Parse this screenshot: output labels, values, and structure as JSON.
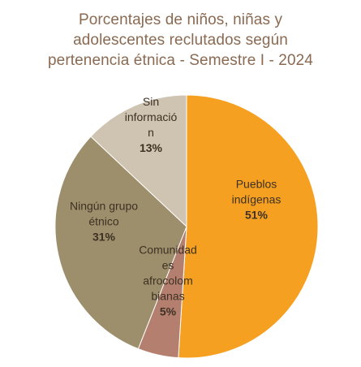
{
  "chart_data": {
    "type": "pie",
    "title_lines": [
      "Porcentajes de niños, niñas y",
      "adolescentes reclutados según",
      "pertenencia étnica  - Semestre I - 2024"
    ],
    "slices": [
      {
        "label_lines": [
          "Pueblos",
          "indígenas"
        ],
        "value": 51,
        "value_label": "51%",
        "color": "#f5a020"
      },
      {
        "label_lines": [
          "Comunidad",
          "es",
          "afrocolom",
          "bianas"
        ],
        "value": 5,
        "value_label": "5%",
        "color": "#b57f6f"
      },
      {
        "label_lines": [
          "Ningún grupo",
          "étnico"
        ],
        "value": 31,
        "value_label": "31%",
        "color": "#9d8f6c"
      },
      {
        "label_lines": [
          "Sin",
          "informació",
          "n"
        ],
        "value": 13,
        "value_label": "13%",
        "color": "#cfc3b1"
      }
    ],
    "legend": "none"
  }
}
